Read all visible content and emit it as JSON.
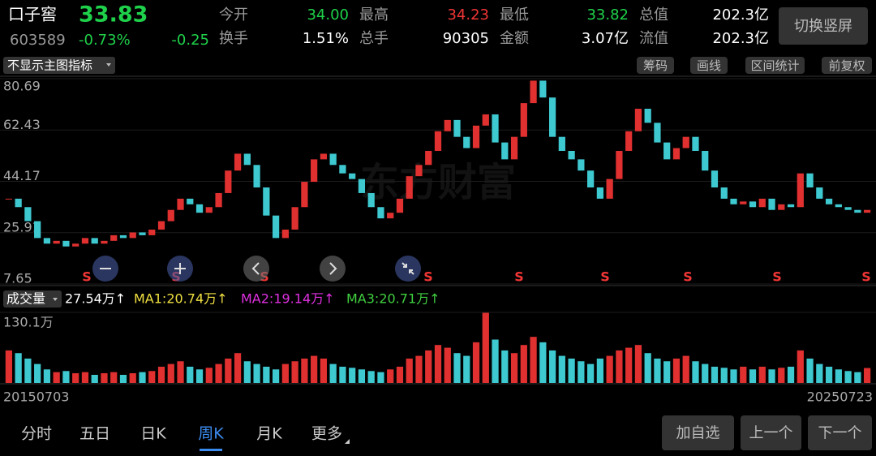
{
  "header": {
    "name": "口子窖",
    "price": "33.83",
    "code": "603589",
    "change_pct": "-0.73%",
    "change": "-0.25",
    "stats": [
      [
        {
          "label": "今开",
          "value": "34.00",
          "color": "#1fd14a"
        },
        {
          "label": "最高",
          "value": "34.23",
          "color": "#f03535"
        },
        {
          "label": "最低",
          "value": "33.82",
          "color": "#1fd14a"
        },
        {
          "label": "总值",
          "value": "202.3亿",
          "color": "#ffffff"
        }
      ],
      [
        {
          "label": "换手",
          "value": "1.51%",
          "color": "#ffffff"
        },
        {
          "label": "总手",
          "value": "90305",
          "color": "#ffffff"
        },
        {
          "label": "金额",
          "value": "3.07亿",
          "color": "#ffffff"
        },
        {
          "label": "流值",
          "value": "202.3亿",
          "color": "#ffffff"
        }
      ]
    ],
    "orientation_button": "切换竖屏"
  },
  "toolbar": {
    "indicator": "不显示主图指标",
    "tools": [
      "筹码",
      "画线",
      "区间统计",
      "前复权"
    ]
  },
  "volume_header": {
    "label": "成交量",
    "items": [
      {
        "text": "27.54万↑",
        "color": "#ffffff"
      },
      {
        "text": "MA1:20.74万↑",
        "color": "#f0e040"
      },
      {
        "text": "MA2:19.14万↑",
        "color": "#e030e0"
      },
      {
        "text": "MA3:20.71万↑",
        "color": "#40d040"
      }
    ]
  },
  "chart_data": {
    "type": "candlestick",
    "watermark": "东方财富",
    "up_color": "#e03030",
    "down_color": "#3ec8d0",
    "close": [
      38,
      35,
      30,
      24,
      22,
      23,
      21,
      22,
      24,
      22,
      23,
      25,
      24,
      26,
      25,
      27,
      30,
      34,
      38,
      36,
      33,
      35,
      40,
      48,
      54,
      50,
      42,
      32,
      24,
      27,
      35,
      44,
      52,
      54,
      50,
      47,
      45,
      40,
      35,
      31,
      33,
      38,
      46,
      50,
      55,
      62,
      66,
      60,
      56,
      64,
      68,
      58,
      52,
      60,
      72,
      80,
      74,
      60,
      55,
      52,
      48,
      42,
      38,
      45,
      55,
      62,
      70,
      65,
      58,
      52,
      56,
      60,
      55,
      48,
      42,
      38,
      36,
      37,
      35,
      38,
      34,
      36,
      35,
      47,
      42,
      38,
      36,
      35,
      34,
      33,
      34
    ],
    "volume": [
      60,
      55,
      45,
      35,
      25,
      20,
      22,
      18,
      20,
      15,
      18,
      20,
      15,
      18,
      20,
      22,
      30,
      35,
      40,
      30,
      25,
      28,
      35,
      45,
      55,
      40,
      35,
      30,
      25,
      35,
      40,
      45,
      50,
      45,
      35,
      30,
      28,
      25,
      22,
      20,
      25,
      30,
      45,
      50,
      60,
      70,
      65,
      55,
      50,
      75,
      130,
      80,
      60,
      55,
      70,
      85,
      75,
      60,
      50,
      45,
      40,
      35,
      45,
      50,
      60,
      65,
      70,
      55,
      45,
      40,
      45,
      50,
      40,
      35,
      30,
      28,
      25,
      30,
      25,
      30,
      25,
      28,
      30,
      60,
      45,
      35,
      30,
      25,
      22,
      20,
      27.54
    ],
    "ylim": [
      7.65,
      80.69
    ],
    "yticks": [
      80.69,
      62.43,
      44.17,
      25.91,
      7.65
    ],
    "grid": true,
    "volume_ylim": [
      0,
      130.1
    ],
    "volume_yticks": [
      {
        "value": 130.1,
        "label": "130.1万"
      }
    ],
    "start_date": "20150703",
    "end_date": "20250723",
    "signals": [
      "S",
      "S",
      "S",
      "S",
      "S",
      "S",
      "S",
      "S",
      "S"
    ]
  },
  "tabs": {
    "items": [
      "分时",
      "五日",
      "日K",
      "周K",
      "月K",
      "更多"
    ],
    "active": 3
  },
  "actions": [
    "加自选",
    "上一个",
    "下一个"
  ]
}
